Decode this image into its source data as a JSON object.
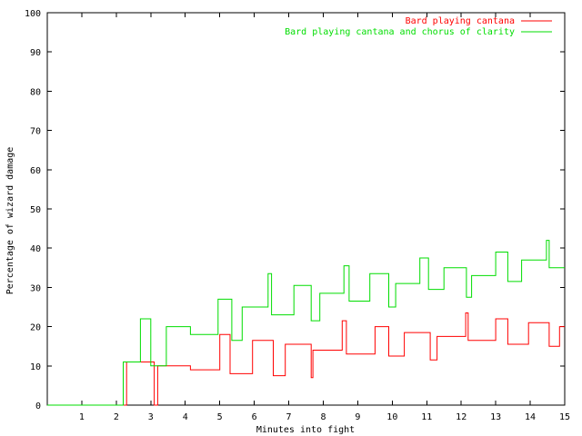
{
  "chart_data": {
    "type": "line",
    "title": "",
    "xlabel": "Minutes into fight",
    "ylabel": "Percentage of wizard damage",
    "xlim": [
      0,
      15
    ],
    "ylim": [
      0,
      100
    ],
    "x_ticks": [
      1,
      2,
      3,
      4,
      5,
      6,
      7,
      8,
      9,
      10,
      11,
      12,
      13,
      14,
      15
    ],
    "y_ticks": [
      0,
      10,
      20,
      30,
      40,
      50,
      60,
      70,
      80,
      90,
      100
    ],
    "x_tick_labels": [
      "1",
      "2",
      "3",
      "4",
      "5",
      "6",
      "7",
      "8",
      "9",
      "10",
      "11",
      "12",
      "13",
      "14",
      "15"
    ],
    "y_tick_labels": [
      "0",
      "10",
      "20",
      "30",
      "40",
      "50",
      "60",
      "70",
      "80",
      "90",
      "100"
    ],
    "grid": false,
    "legend_position": "top-right",
    "line_shape": "step",
    "series": [
      {
        "name": "Bard playing cantana",
        "color": "#ff0000",
        "points": [
          [
            0.0,
            0
          ],
          [
            2.2,
            0
          ],
          [
            2.3,
            11
          ],
          [
            2.9,
            11
          ],
          [
            3.1,
            0
          ],
          [
            3.2,
            0
          ],
          [
            3.2,
            10
          ],
          [
            4.1,
            10
          ],
          [
            4.15,
            9
          ],
          [
            4.95,
            9
          ],
          [
            5.0,
            18
          ],
          [
            5.25,
            18
          ],
          [
            5.3,
            8
          ],
          [
            5.9,
            8
          ],
          [
            5.95,
            16.5
          ],
          [
            6.5,
            16.5
          ],
          [
            6.55,
            7.5
          ],
          [
            6.85,
            7.5
          ],
          [
            6.9,
            15.5
          ],
          [
            7.6,
            15.5
          ],
          [
            7.65,
            7
          ],
          [
            7.7,
            14
          ],
          [
            8.5,
            14
          ],
          [
            8.55,
            21.5
          ],
          [
            8.62,
            21.5
          ],
          [
            8.67,
            13
          ],
          [
            9.45,
            13
          ],
          [
            9.5,
            20
          ],
          [
            9.85,
            20
          ],
          [
            9.9,
            12.5
          ],
          [
            10.3,
            12.5
          ],
          [
            10.35,
            18.5
          ],
          [
            11.05,
            18.5
          ],
          [
            11.1,
            11.5
          ],
          [
            11.25,
            11.5
          ],
          [
            11.3,
            17.5
          ],
          [
            12.1,
            17.5
          ],
          [
            12.13,
            23.5
          ],
          [
            12.17,
            23.5
          ],
          [
            12.2,
            16.5
          ],
          [
            12.95,
            16.5
          ],
          [
            13.0,
            22
          ],
          [
            13.3,
            22
          ],
          [
            13.35,
            15.5
          ],
          [
            13.9,
            15.5
          ],
          [
            13.95,
            21
          ],
          [
            14.5,
            21
          ],
          [
            14.55,
            15
          ],
          [
            14.8,
            15
          ],
          [
            14.85,
            20
          ],
          [
            15.0,
            20
          ]
        ]
      },
      {
        "name": "Bard playing cantana and chorus of clarity",
        "color": "#00dd00",
        "points": [
          [
            0.0,
            0
          ],
          [
            2.1,
            0
          ],
          [
            2.2,
            11
          ],
          [
            2.65,
            11
          ],
          [
            2.7,
            22
          ],
          [
            2.95,
            22
          ],
          [
            3.0,
            10
          ],
          [
            3.4,
            10
          ],
          [
            3.45,
            20
          ],
          [
            4.1,
            20
          ],
          [
            4.15,
            18
          ],
          [
            4.9,
            18
          ],
          [
            4.95,
            27
          ],
          [
            5.3,
            27
          ],
          [
            5.35,
            16.5
          ],
          [
            5.6,
            16.5
          ],
          [
            5.65,
            25
          ],
          [
            6.35,
            25
          ],
          [
            6.4,
            33.5
          ],
          [
            6.45,
            33.5
          ],
          [
            6.5,
            23
          ],
          [
            7.1,
            23
          ],
          [
            7.15,
            30.5
          ],
          [
            7.6,
            30.5
          ],
          [
            7.65,
            21.5
          ],
          [
            7.85,
            21.5
          ],
          [
            7.9,
            28.5
          ],
          [
            8.55,
            28.5
          ],
          [
            8.6,
            35.5
          ],
          [
            8.7,
            35.5
          ],
          [
            8.75,
            26.5
          ],
          [
            9.3,
            26.5
          ],
          [
            9.35,
            33.5
          ],
          [
            9.85,
            33.5
          ],
          [
            9.9,
            25
          ],
          [
            10.05,
            25
          ],
          [
            10.1,
            31
          ],
          [
            10.75,
            31
          ],
          [
            10.8,
            37.5
          ],
          [
            11.0,
            37.5
          ],
          [
            11.05,
            29.5
          ],
          [
            11.45,
            29.5
          ],
          [
            11.5,
            35
          ],
          [
            12.1,
            35
          ],
          [
            12.15,
            27.5
          ],
          [
            12.25,
            27.5
          ],
          [
            12.3,
            33
          ],
          [
            12.95,
            33
          ],
          [
            13.0,
            39
          ],
          [
            13.3,
            39
          ],
          [
            13.35,
            31.5
          ],
          [
            13.7,
            31.5
          ],
          [
            13.75,
            37
          ],
          [
            14.45,
            37
          ],
          [
            14.47,
            42
          ],
          [
            14.5,
            42
          ],
          [
            14.55,
            35
          ],
          [
            15.0,
            35
          ]
        ]
      }
    ]
  }
}
